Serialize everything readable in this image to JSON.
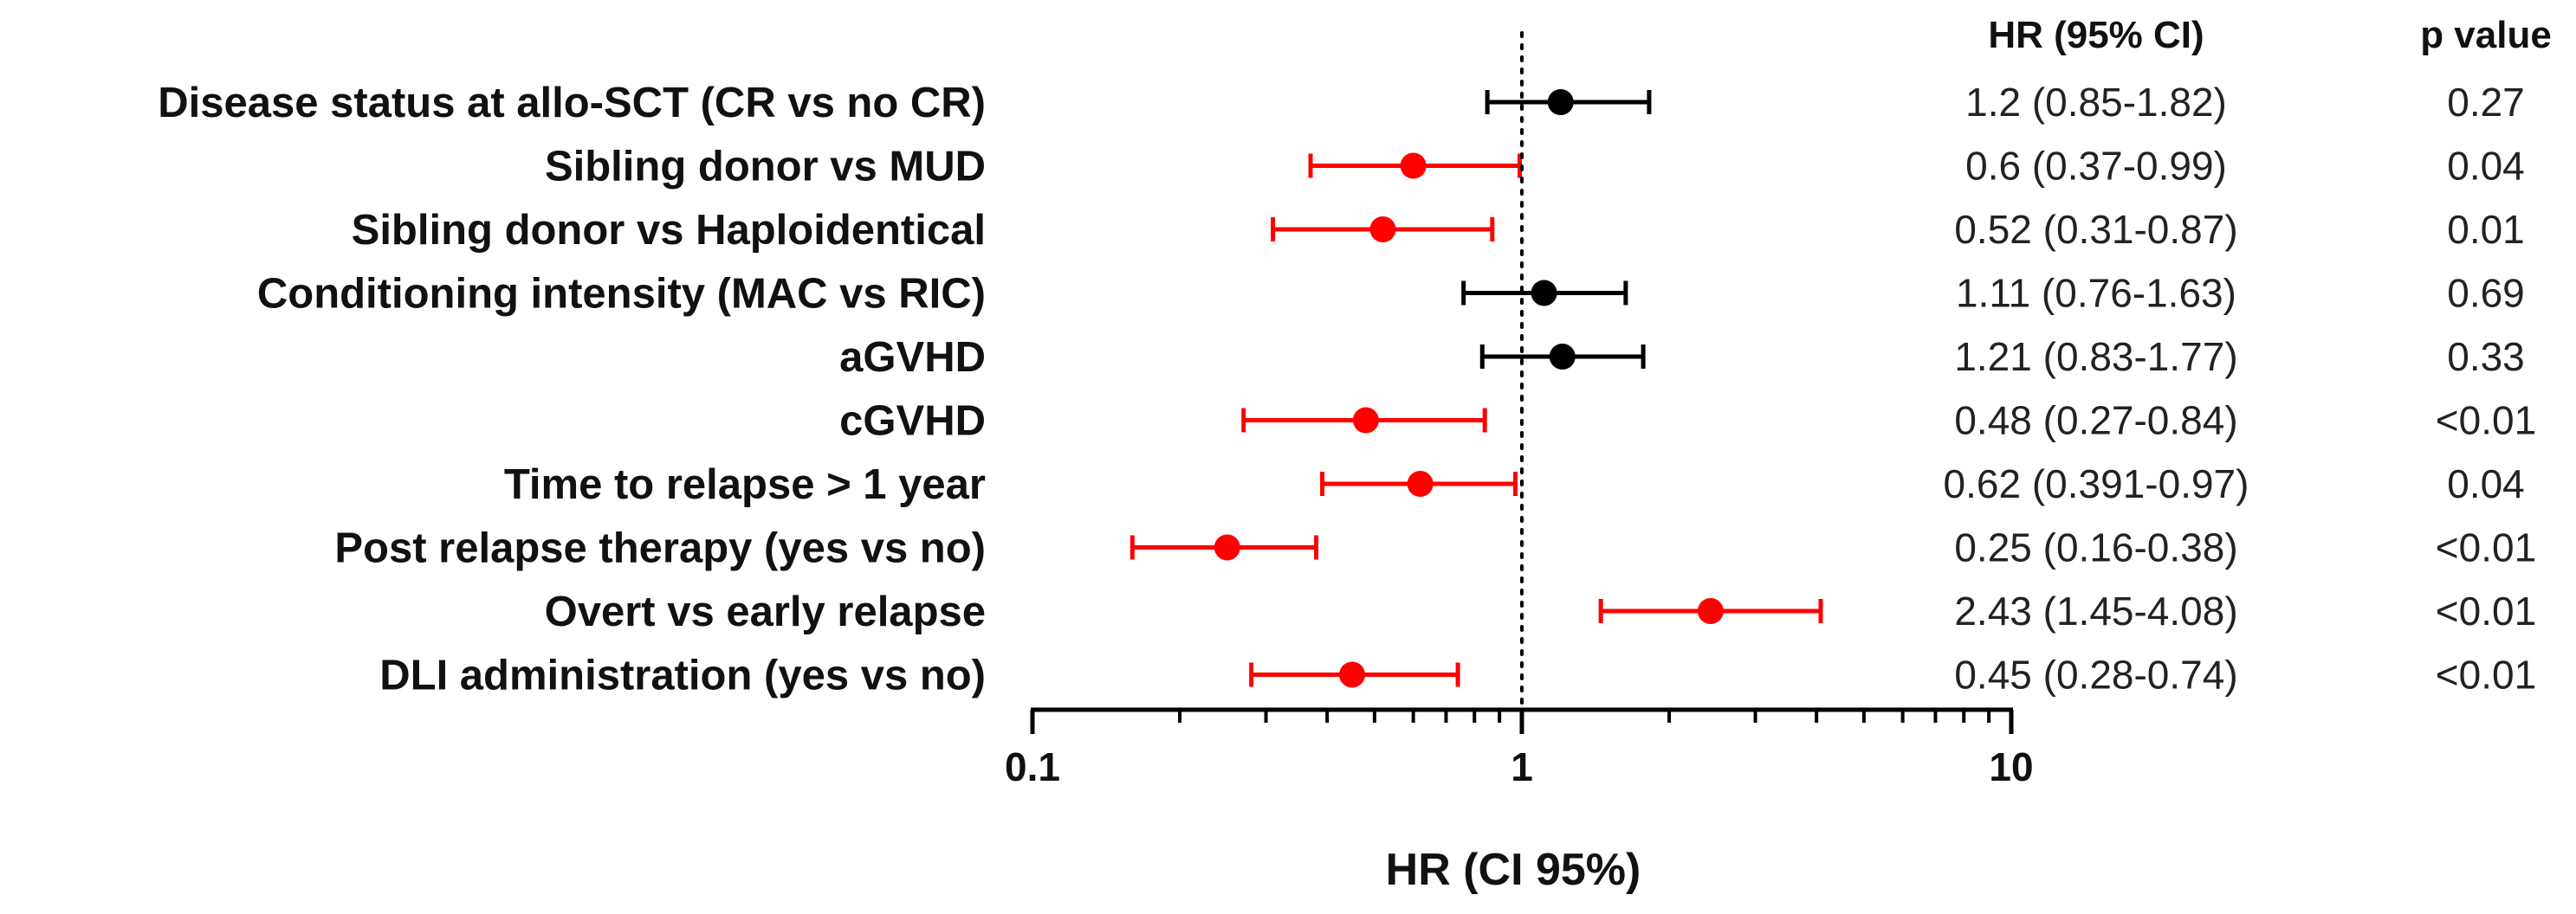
{
  "chart_data": {
    "type": "forest",
    "xlabel": "HR (CI 95%)",
    "xscale": "log",
    "xlim": [
      0.1,
      10
    ],
    "x_ticks": [
      "0.1",
      "1",
      "10"
    ],
    "reference_line": 1,
    "column_headers": {
      "hr": "HR (95% CI)",
      "p": "p value"
    },
    "colors": {
      "significant": "#ff0000",
      "not_significant": "#000000",
      "axis": "#000000"
    },
    "rows": [
      {
        "label": "Disease status at allo-SCT (CR vs no CR)",
        "hr": 1.2,
        "lo": 0.85,
        "hi": 1.82,
        "hr_text": "1.2 (0.85-1.82)",
        "p_text": "0.27",
        "significant": false
      },
      {
        "label": "Sibling donor vs MUD",
        "hr": 0.6,
        "lo": 0.37,
        "hi": 0.99,
        "hr_text": "0.6 (0.37-0.99)",
        "p_text": "0.04",
        "significant": true
      },
      {
        "label": "Sibling donor vs Haploidentical",
        "hr": 0.52,
        "lo": 0.31,
        "hi": 0.87,
        "hr_text": "0.52 (0.31-0.87)",
        "p_text": "0.01",
        "significant": true
      },
      {
        "label": "Conditioning intensity (MAC vs RIC)",
        "hr": 1.11,
        "lo": 0.76,
        "hi": 1.63,
        "hr_text": "1.11 (0.76-1.63)",
        "p_text": "0.69",
        "significant": false
      },
      {
        "label": "aGVHD",
        "hr": 1.21,
        "lo": 0.83,
        "hi": 1.77,
        "hr_text": "1.21 (0.83-1.77)",
        "p_text": "0.33",
        "significant": false
      },
      {
        "label": "cGVHD",
        "hr": 0.48,
        "lo": 0.27,
        "hi": 0.84,
        "hr_text": "0.48 (0.27-0.84)",
        "p_text": "<0.01",
        "significant": true
      },
      {
        "label": "Time to relapse > 1 year",
        "hr": 0.62,
        "lo": 0.391,
        "hi": 0.97,
        "hr_text": "0.62 (0.391-0.97)",
        "p_text": "0.04",
        "significant": true
      },
      {
        "label": "Post relapse therapy (yes vs no)",
        "hr": 0.25,
        "lo": 0.16,
        "hi": 0.38,
        "hr_text": "0.25 (0.16-0.38)",
        "p_text": "<0.01",
        "significant": true
      },
      {
        "label": "Overt vs early relapse",
        "hr": 2.43,
        "lo": 1.45,
        "hi": 4.08,
        "hr_text": "2.43 (1.45-4.08)",
        "p_text": "<0.01",
        "significant": true
      },
      {
        "label": "DLI administration (yes vs no)",
        "hr": 0.45,
        "lo": 0.28,
        "hi": 0.74,
        "hr_text": "0.45 (0.28-0.74)",
        "p_text": "<0.01",
        "significant": true
      }
    ]
  }
}
